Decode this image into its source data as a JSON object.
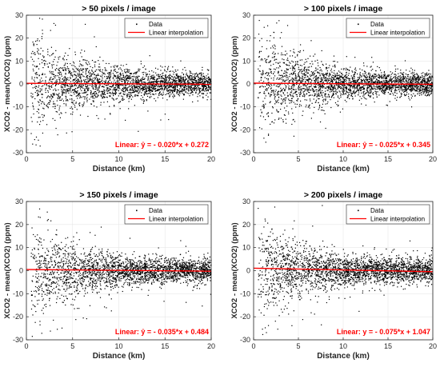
{
  "figure": {
    "colors": {
      "data": "#000000",
      "fit_line": "#ff0000",
      "annotation": "#ff0000",
      "axes": "#262626"
    }
  },
  "chart_data": [
    {
      "type": "scatter",
      "title": "> 50 pixels / image",
      "xlabel": "Distance (km)",
      "ylabel": "XCO2 - mean(XCO2) (ppm)",
      "xlim": [
        0,
        20
      ],
      "ylim": [
        -30,
        30
      ],
      "xticks": [
        "0",
        "5",
        "10",
        "15",
        "20"
      ],
      "yticks": [
        "30",
        "20",
        "10",
        "0",
        "-10",
        "-20",
        "-30"
      ],
      "grid": true,
      "legend": {
        "placement": "top-right",
        "entries": [
          "Data",
          "Linear interpolation"
        ]
      },
      "series": [
        {
          "name": "Data",
          "kind": "points",
          "density": "dense",
          "x_range": [
            0.5,
            20
          ],
          "y_spread_near": 25,
          "y_spread_far": 6
        },
        {
          "name": "Linear interpolation",
          "kind": "line",
          "slope": -0.02,
          "intercept": 0.272
        }
      ],
      "annotation": "Linear:  ŷ = - 0.020*x + 0.272"
    },
    {
      "type": "scatter",
      "title": "> 100 pixels / image",
      "xlabel": "Distance (km)",
      "ylabel": "XCO2 - mean(XCO2) (ppm)",
      "xlim": [
        0,
        20
      ],
      "ylim": [
        -30,
        30
      ],
      "xticks": [
        "0",
        "5",
        "10",
        "15",
        "20"
      ],
      "yticks": [
        "30",
        "20",
        "10",
        "0",
        "-10",
        "-20",
        "-30"
      ],
      "grid": true,
      "legend": {
        "placement": "top-right",
        "entries": [
          "Data",
          "Linear interpolation"
        ]
      },
      "series": [
        {
          "name": "Data",
          "kind": "points",
          "density": "dense",
          "x_range": [
            0.5,
            20
          ],
          "y_spread_near": 25,
          "y_spread_far": 6
        },
        {
          "name": "Linear interpolation",
          "kind": "line",
          "slope": -0.025,
          "intercept": 0.345
        }
      ],
      "annotation": "Linear:  ŷ = - 0.025*x + 0.345"
    },
    {
      "type": "scatter",
      "title": "> 150 pixels / image",
      "xlabel": "Distance (km)",
      "ylabel": "XCO2 - mean(XCO2) (ppm)",
      "xlim": [
        0,
        20
      ],
      "ylim": [
        -30,
        30
      ],
      "xticks": [
        "0",
        "5",
        "10",
        "15",
        "20"
      ],
      "yticks": [
        "30",
        "20",
        "10",
        "0",
        "-10",
        "-20",
        "-30"
      ],
      "grid": true,
      "legend": {
        "placement": "top-right",
        "entries": [
          "Data",
          "Linear interpolation"
        ]
      },
      "series": [
        {
          "name": "Data",
          "kind": "points",
          "density": "dense",
          "x_range": [
            0.5,
            20
          ],
          "y_spread_near": 25,
          "y_spread_far": 6
        },
        {
          "name": "Linear interpolation",
          "kind": "line",
          "slope": -0.035,
          "intercept": 0.484
        }
      ],
      "annotation": "Linear:  ŷ = - 0.035*x + 0.484"
    },
    {
      "type": "scatter",
      "title": "> 200 pixels / image",
      "xlabel": "Distance (km)",
      "ylabel": "XCO2 - mean(XCO2) (ppm)",
      "xlim": [
        0,
        20
      ],
      "ylim": [
        -30,
        30
      ],
      "xticks": [
        "0",
        "5",
        "10",
        "15",
        "20"
      ],
      "yticks": [
        "30",
        "20",
        "10",
        "0",
        "-10",
        "-20",
        "-30"
      ],
      "grid": true,
      "legend": {
        "placement": "top-right",
        "entries": [
          "Data",
          "Linear interpolation"
        ]
      },
      "series": [
        {
          "name": "Data",
          "kind": "points",
          "density": "dense",
          "x_range": [
            0.5,
            20
          ],
          "y_spread_near": 25,
          "y_spread_far": 6
        },
        {
          "name": "Linear interpolation",
          "kind": "line",
          "slope": -0.075,
          "intercept": 1.047
        }
      ],
      "annotation": "Linear:  y = - 0.075*x + 1.047"
    }
  ]
}
